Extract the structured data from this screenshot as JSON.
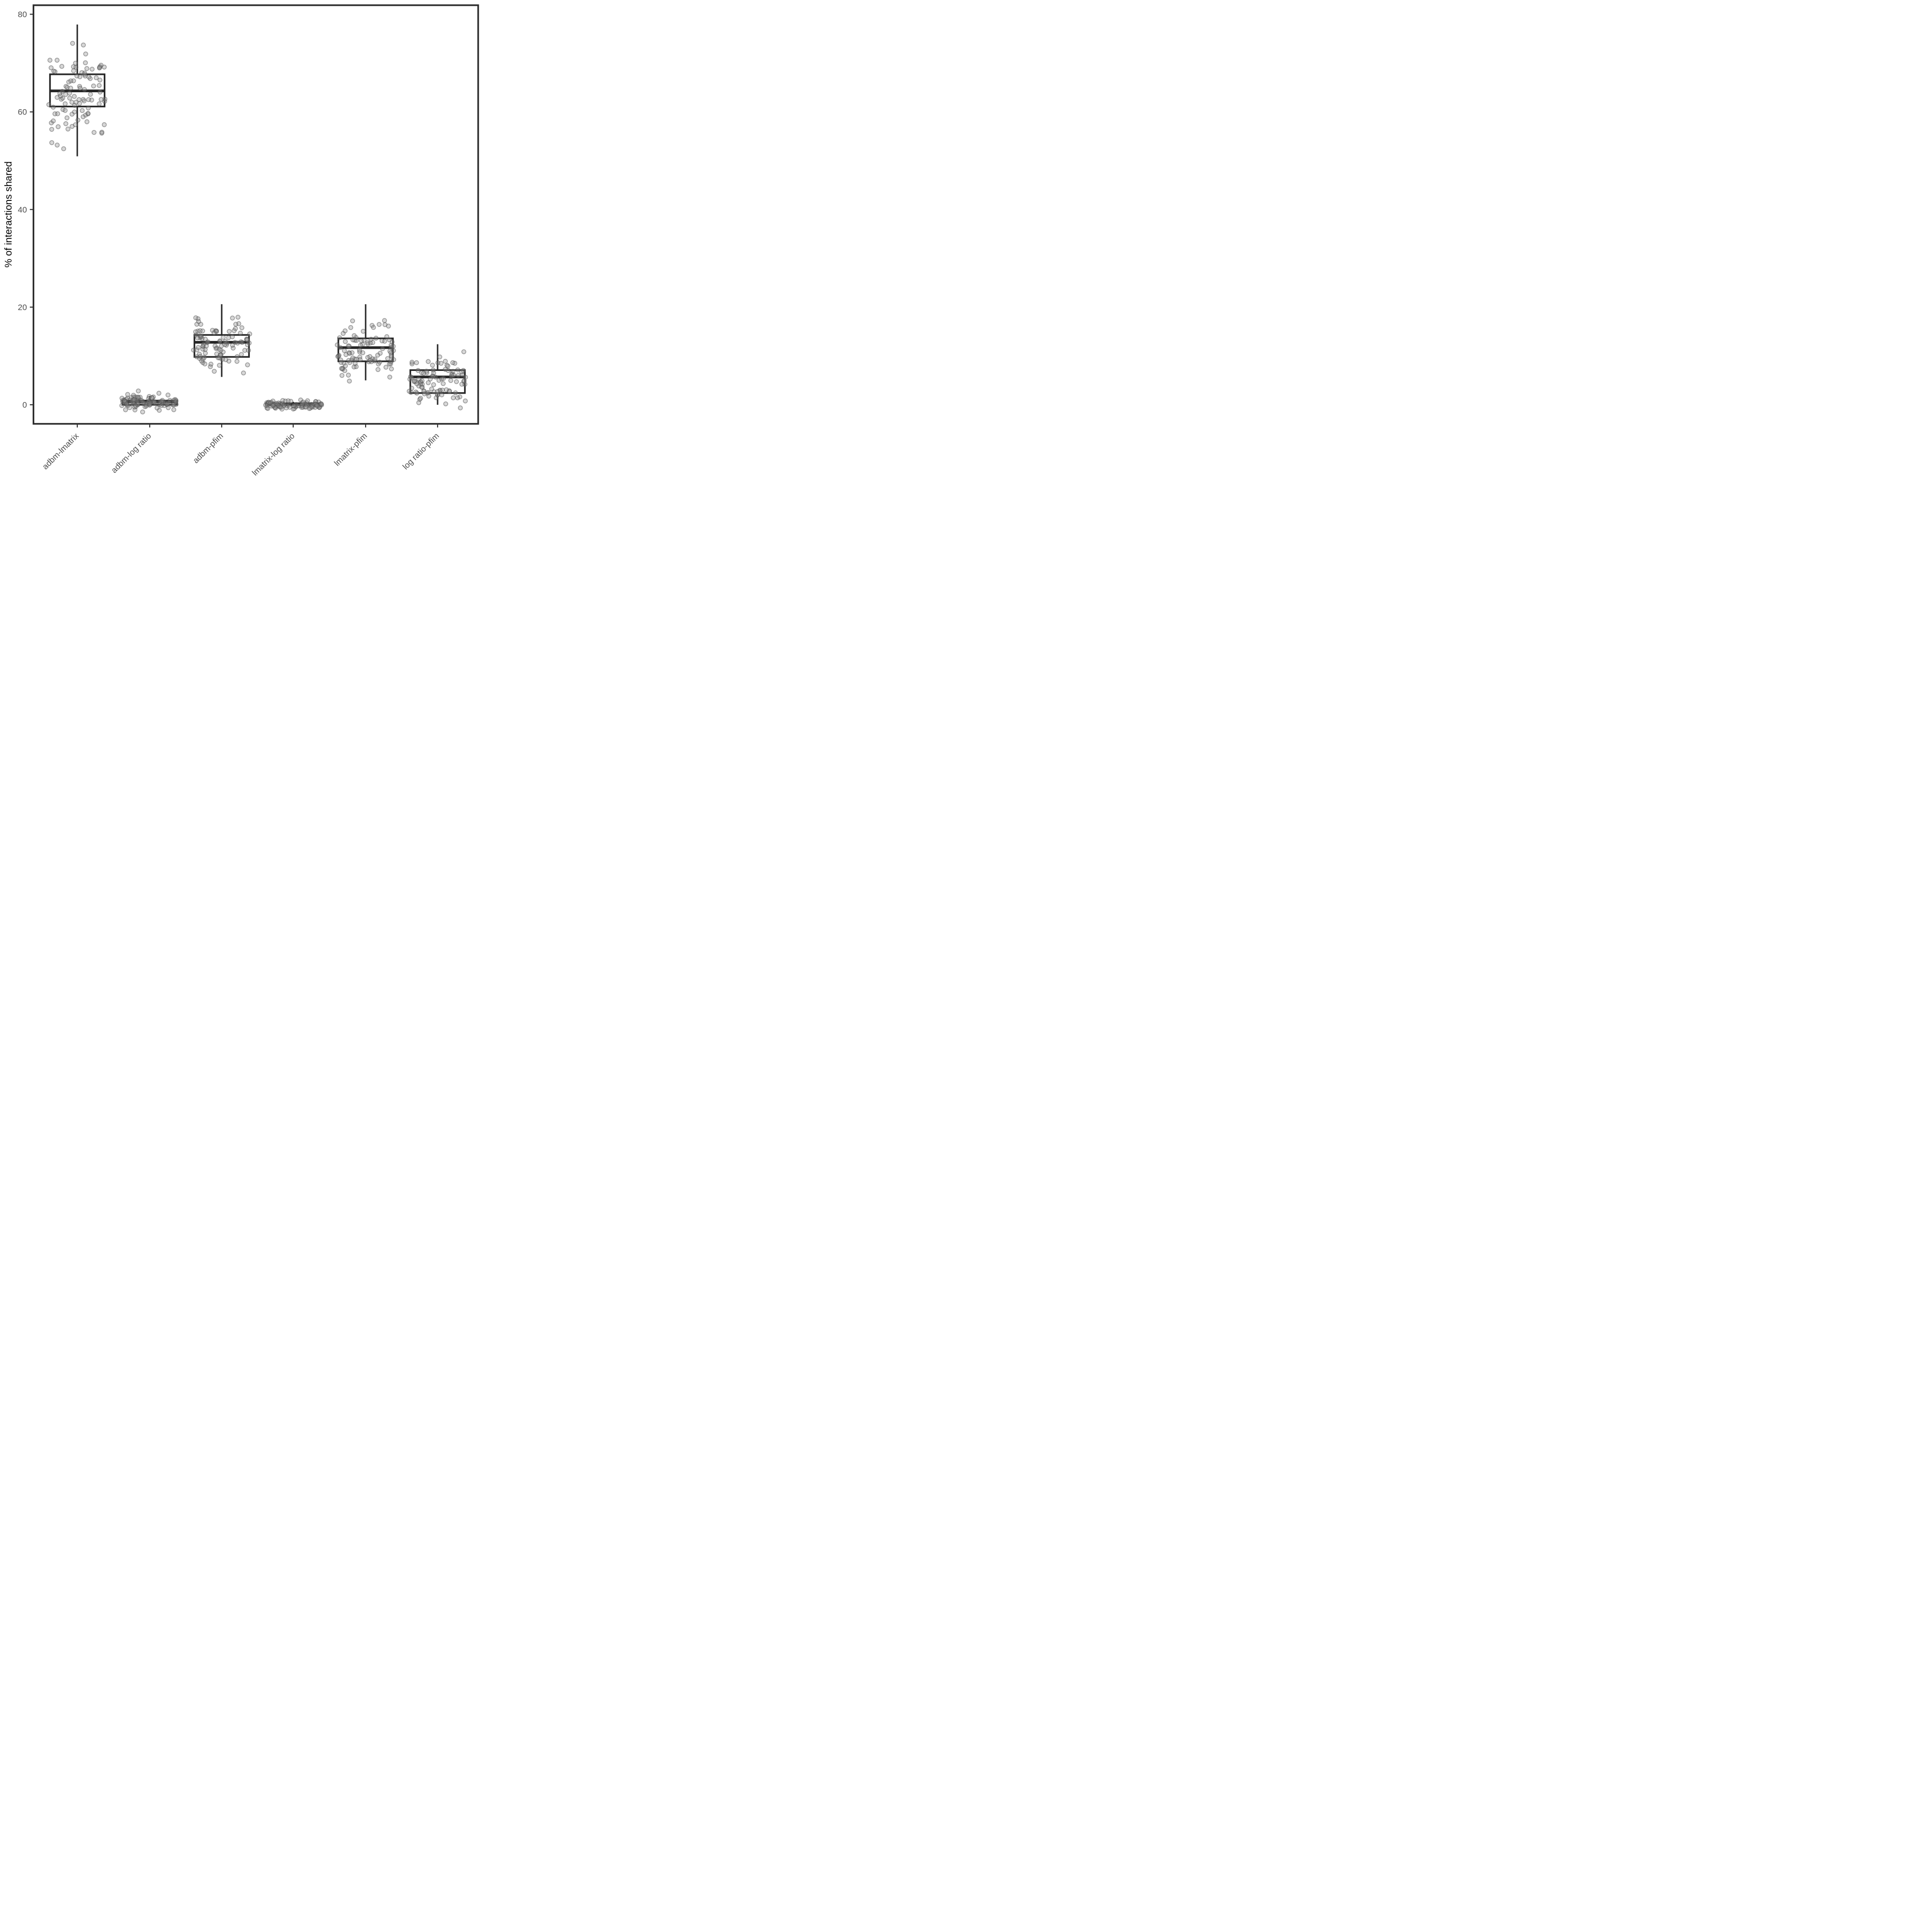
{
  "chart_data": {
    "type": "boxplot",
    "subtype": "boxplot-with-jittered-points",
    "ylabel": "% of interactions shared",
    "categories": [
      "adbm-lmatrix",
      "adbm-log ratio",
      "adbm-pfim",
      "lmatrix-log ratio",
      "lmatrix-pfim",
      "log ratio-pfim"
    ],
    "y_ticks": [
      0,
      20,
      40,
      60,
      80
    ],
    "ylim": [
      -4,
      82
    ],
    "grid": false,
    "legend": "none",
    "series": [
      {
        "name": "adbm-lmatrix",
        "box": {
          "whisker_low": 50.9,
          "q1": 61.1,
          "median": 64.3,
          "q3": 67.7,
          "whisker_high": 77.9
        },
        "points": {
          "n": 100,
          "mean": 64.3,
          "sd": 5.0,
          "min": 51.5,
          "max": 77.3,
          "seed": 101
        }
      },
      {
        "name": "adbm-log ratio",
        "box": {
          "whisker_low": 0,
          "q1": 0,
          "median": 0.6,
          "q3": 0.85,
          "whisker_high": 1.8
        },
        "points": {
          "n": 100,
          "mean": 0.5,
          "sd": 0.8,
          "min": -1.5,
          "max": 3.1,
          "seed": 102
        }
      },
      {
        "name": "adbm-pfim",
        "box": {
          "whisker_low": 5.7,
          "q1": 9.8,
          "median": 12.8,
          "q3": 14.3,
          "whisker_high": 20.6
        },
        "points": {
          "n": 100,
          "mean": 12.0,
          "sd": 3.0,
          "min": 6.2,
          "max": 19.7,
          "seed": 103
        }
      },
      {
        "name": "lmatrix-log ratio",
        "box": {
          "whisker_low": 0,
          "q1": 0,
          "median": 0.08,
          "q3": 0.3,
          "whisker_high": 0.6
        },
        "points": {
          "n": 100,
          "mean": 0.0,
          "sd": 0.42,
          "min": -1.2,
          "max": 1.2,
          "seed": 104
        }
      },
      {
        "name": "lmatrix-pfim",
        "box": {
          "whisker_low": 5.0,
          "q1": 8.9,
          "median": 11.7,
          "q3": 13.6,
          "whisker_high": 20.6
        },
        "points": {
          "n": 100,
          "mean": 11.1,
          "sd": 3.1,
          "min": 3.9,
          "max": 20.3,
          "seed": 105
        }
      },
      {
        "name": "log ratio-pfim",
        "box": {
          "whisker_low": 0,
          "q1": 2.4,
          "median": 5.7,
          "q3": 7.1,
          "whisker_high": 12.4
        },
        "points": {
          "n": 100,
          "mean": 5.2,
          "sd": 2.6,
          "min": -0.8,
          "max": 11.2,
          "seed": 106
        }
      }
    ],
    "style": {
      "background": "#ffffff",
      "panel_border": "#2b2b2b",
      "box_line": "#262626",
      "axis_text": "#4d4d4d",
      "axis_title": "#000000",
      "point_fill": "#8c8c8c",
      "point_stroke": "#4f4f4f",
      "point_opacity": 0.35
    }
  }
}
